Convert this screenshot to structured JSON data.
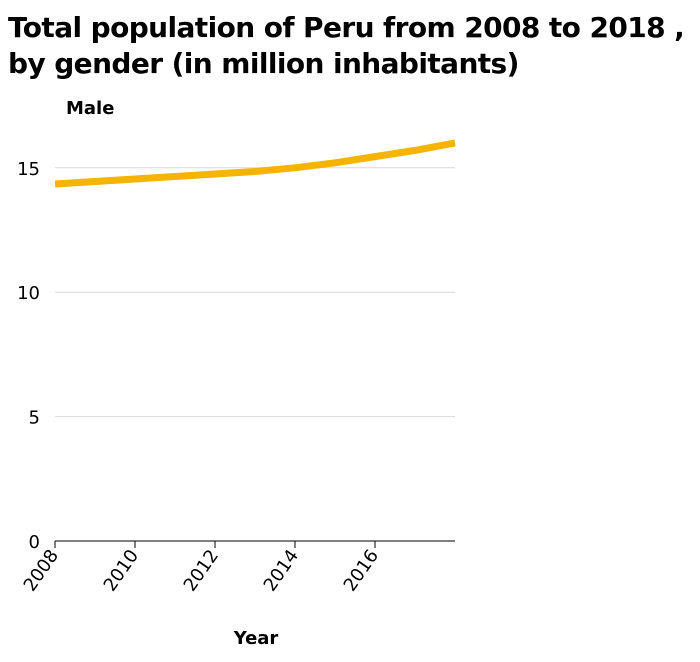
{
  "chart_data": {
    "type": "line",
    "title": "Total population of Peru from 2008 to 2018 , by gender (in million inhabitants)",
    "xlabel": "Year",
    "ylabel": "Male",
    "xlim": [
      2008,
      2018
    ],
    "ylim": [
      0,
      16.6
    ],
    "x_ticks": [
      "2008",
      "2010",
      "2012",
      "2014",
      "2016"
    ],
    "y_ticks": [
      "0",
      "5",
      "10",
      "15"
    ],
    "grid": true,
    "line_color": "#f4b400",
    "grid_color": "#d9d9d9",
    "series": [
      {
        "name": "Male",
        "x": [
          2008,
          2009,
          2010,
          2011,
          2012,
          2013,
          2014,
          2015,
          2016,
          2017,
          2018
        ],
        "values": [
          14.35,
          14.45,
          14.55,
          14.65,
          14.75,
          14.85,
          15.0,
          15.2,
          15.45,
          15.7,
          16.0
        ]
      }
    ]
  }
}
